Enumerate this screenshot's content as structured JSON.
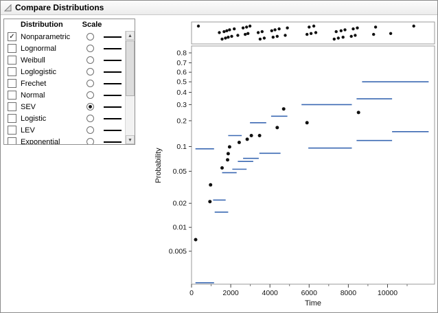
{
  "panel": {
    "title": "Compare Distributions"
  },
  "icons": {
    "disclosure_triangle": "lower-right-triangle",
    "scroll_up": "▲",
    "scroll_down": "▼",
    "checkmark": "✓"
  },
  "table": {
    "headers": {
      "distribution": "Distribution",
      "scale": "Scale"
    },
    "rows": [
      {
        "label": "Nonparametric",
        "checked": true,
        "scale_selected": false
      },
      {
        "label": "Lognormal",
        "checked": false,
        "scale_selected": false
      },
      {
        "label": "Weibull",
        "checked": false,
        "scale_selected": false
      },
      {
        "label": "Loglogistic",
        "checked": false,
        "scale_selected": false
      },
      {
        "label": "Frechet",
        "checked": false,
        "scale_selected": false
      },
      {
        "label": "Normal",
        "checked": false,
        "scale_selected": false
      },
      {
        "label": "SEV",
        "checked": false,
        "scale_selected": true
      },
      {
        "label": "Logistic",
        "checked": false,
        "scale_selected": false
      },
      {
        "label": "LEV",
        "checked": false,
        "scale_selected": false
      },
      {
        "label": "Exponential",
        "checked": false,
        "scale_selected": false
      }
    ]
  },
  "chart_data": {
    "type": "scatter",
    "title": "",
    "xlabel": "Time",
    "ylabel": "Probability",
    "x_ticks": [
      0,
      2000,
      4000,
      6000,
      8000,
      10000
    ],
    "x_minor_ticks": [
      1000,
      3000,
      5000,
      7000,
      9000,
      11000
    ],
    "xlim": [
      0,
      12400
    ],
    "y_ticks": [
      0.8,
      0.7,
      0.6,
      0.5,
      0.4,
      0.3,
      0.2,
      0.1,
      0.05,
      0.02,
      0.01,
      0.005
    ],
    "ylim": [
      0.0019,
      0.86
    ],
    "y_scale": "sev-probability",
    "grid": false,
    "legend": "none",
    "colors": {
      "event_points": "#111111",
      "estimate_points": "#111111",
      "nonparametric_segments": "#3a68b2"
    },
    "event_plot_times": [
      350,
      1420,
      1560,
      1660,
      1730,
      1800,
      1870,
      1940,
      2050,
      2180,
      2360,
      2630,
      2740,
      2810,
      2880,
      2980,
      3400,
      3500,
      3600,
      3710,
      4090,
      4160,
      4260,
      4370,
      4470,
      4780,
      4890,
      5890,
      6000,
      6100,
      6240,
      6340,
      7280,
      7380,
      7490,
      7630,
      7730,
      7830,
      8150,
      8250,
      8350,
      8460,
      9290,
      9390,
      10160,
      11340
    ],
    "points_time_prob": [
      [
        210,
        0.007
      ],
      [
        940,
        0.021
      ],
      [
        970,
        0.034
      ],
      [
        1560,
        0.055
      ],
      [
        1840,
        0.069
      ],
      [
        1870,
        0.082
      ],
      [
        1940,
        0.099
      ],
      [
        2430,
        0.112
      ],
      [
        2840,
        0.122
      ],
      [
        3050,
        0.135
      ],
      [
        3470,
        0.135
      ],
      [
        4370,
        0.167
      ],
      [
        4700,
        0.27
      ],
      [
        5890,
        0.19
      ],
      [
        8520,
        0.247
      ]
    ],
    "segments_t1_t2_prob": [
      [
        200,
        1150,
        0.002
      ],
      [
        200,
        1150,
        0.094
      ],
      [
        1100,
        1740,
        0.022
      ],
      [
        1180,
        1870,
        0.0155
      ],
      [
        1560,
        2300,
        0.048
      ],
      [
        1870,
        2560,
        0.135
      ],
      [
        2080,
        2810,
        0.053
      ],
      [
        2360,
        3150,
        0.066
      ],
      [
        2630,
        3430,
        0.072
      ],
      [
        2980,
        3810,
        0.19
      ],
      [
        3460,
        4540,
        0.083
      ],
      [
        4060,
        4890,
        0.225
      ],
      [
        5610,
        8180,
        0.3
      ],
      [
        5960,
        8180,
        0.096
      ],
      [
        8420,
        10230,
        0.345
      ],
      [
        8420,
        10230,
        0.118
      ],
      [
        8700,
        12100,
        0.5
      ],
      [
        10230,
        12100,
        0.15
      ]
    ]
  }
}
